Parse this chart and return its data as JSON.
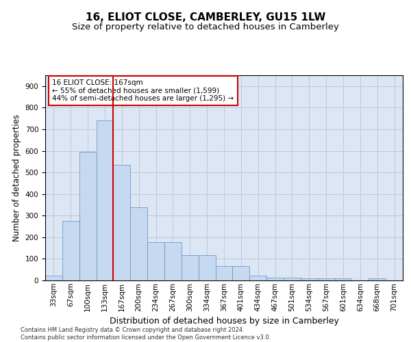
{
  "title": "16, ELIOT CLOSE, CAMBERLEY, GU15 1LW",
  "subtitle": "Size of property relative to detached houses in Camberley",
  "xlabel": "Distribution of detached houses by size in Camberley",
  "ylabel": "Number of detached properties",
  "bar_values": [
    22,
    275,
    595,
    740,
    535,
    340,
    178,
    178,
    118,
    118,
    67,
    67,
    22,
    12,
    12,
    9,
    9,
    8,
    0,
    8,
    0,
    0
  ],
  "bar_labels": [
    "33sqm",
    "67sqm",
    "100sqm",
    "133sqm",
    "167sqm",
    "200sqm",
    "234sqm",
    "267sqm",
    "300sqm",
    "334sqm",
    "367sqm",
    "401sqm",
    "434sqm",
    "467sqm",
    "501sqm",
    "534sqm",
    "567sqm",
    "601sqm",
    "634sqm",
    "668sqm",
    "701sqm"
  ],
  "bar_color": "#c6d9f0",
  "bar_edge_color": "#5b8ec4",
  "vline_x": 4,
  "vline_color": "#cc0000",
  "annotation_text": "16 ELIOT CLOSE: 167sqm\n← 55% of detached houses are smaller (1,599)\n44% of semi-detached houses are larger (1,295) →",
  "annotation_box_color": "#cc0000",
  "ylim": [
    0,
    950
  ],
  "yticks": [
    0,
    100,
    200,
    300,
    400,
    500,
    600,
    700,
    800,
    900
  ],
  "footnote": "Contains HM Land Registry data © Crown copyright and database right 2024.\nContains public sector information licensed under the Open Government Licence v3.0.",
  "background_color": "#ffffff",
  "grid_color": "#c0c8d8",
  "title_fontsize": 11,
  "subtitle_fontsize": 9.5,
  "ylabel_fontsize": 8.5,
  "xlabel_fontsize": 9,
  "tick_fontsize": 7.5,
  "annotation_fontsize": 7.5,
  "footnote_fontsize": 6
}
